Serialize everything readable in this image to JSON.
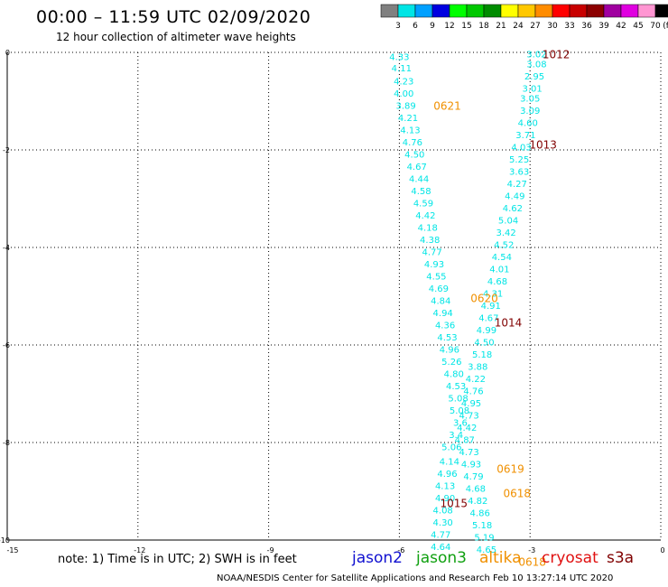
{
  "header": {
    "title": "00:00 – 11:59 UTC 02/09/2020",
    "subtitle": "12 hour collection of altimeter wave heights"
  },
  "colorbar": {
    "labels": [
      "3",
      "6",
      "9",
      "12",
      "15",
      "18",
      "21",
      "24",
      "27",
      "30",
      "33",
      "36",
      "39",
      "42",
      "45",
      "70"
    ],
    "unit": "(ft)",
    "colors": [
      "#808080",
      "#00e5e5",
      "#00a0ff",
      "#0000e0",
      "#00ff00",
      "#00c800",
      "#008c00",
      "#ffff00",
      "#ffc800",
      "#ff8c00",
      "#ff0000",
      "#c80000",
      "#8c0000",
      "#a000a0",
      "#e000e0",
      "#ff96d2",
      "#000000"
    ]
  },
  "footer": {
    "note": "note:  1) Time is in UTC;  2) SWH is in feet",
    "credit": "NOAA/NESDIS Center for Satellite Applications and Research    Feb 10 13:27:14 UTC 2020",
    "satellites": [
      {
        "name": "jason2",
        "color": "#1010d0"
      },
      {
        "name": "jason3",
        "color": "#10a010"
      },
      {
        "name": "altika",
        "color": "#f09000"
      },
      {
        "name": "cryosat",
        "color": "#e01010"
      },
      {
        "name": "s3a",
        "color": "#800000"
      }
    ]
  },
  "chart_data": {
    "type": "scatter",
    "title": "12 hour collection of altimeter wave heights",
    "xlim": [
      -15,
      0
    ],
    "ylim": [
      -10,
      0
    ],
    "xticks": [
      -15,
      -12,
      -9,
      -6,
      -3,
      0
    ],
    "yticks": [
      0,
      -2,
      -4,
      -6,
      -8,
      -10
    ],
    "grid": true,
    "track_color": "#00e5e5",
    "observations": [
      {
        "x": -6.0,
        "y": -0.1,
        "v": "4.33"
      },
      {
        "x": -5.95,
        "y": -0.33,
        "v": "4.11"
      },
      {
        "x": -5.9,
        "y": -0.6,
        "v": "4.23"
      },
      {
        "x": -5.9,
        "y": -0.85,
        "v": "4.00"
      },
      {
        "x": -5.85,
        "y": -1.1,
        "v": "3.89"
      },
      {
        "x": -5.8,
        "y": -1.35,
        "v": "4.21"
      },
      {
        "x": -5.75,
        "y": -1.6,
        "v": "4.13"
      },
      {
        "x": -5.7,
        "y": -1.85,
        "v": "4.76"
      },
      {
        "x": -5.65,
        "y": -2.1,
        "v": "4.50"
      },
      {
        "x": -5.6,
        "y": -2.35,
        "v": "4.67"
      },
      {
        "x": -5.55,
        "y": -2.6,
        "v": "4.44"
      },
      {
        "x": -5.5,
        "y": -2.85,
        "v": "4.58"
      },
      {
        "x": -5.45,
        "y": -3.1,
        "v": "4.59"
      },
      {
        "x": -5.4,
        "y": -3.35,
        "v": "4.42"
      },
      {
        "x": -5.35,
        "y": -3.6,
        "v": "4.18"
      },
      {
        "x": -5.3,
        "y": -3.85,
        "v": "4.38"
      },
      {
        "x": -5.25,
        "y": -4.1,
        "v": "4.77"
      },
      {
        "x": -5.2,
        "y": -4.35,
        "v": "4.93"
      },
      {
        "x": -5.15,
        "y": -4.6,
        "v": "4.55"
      },
      {
        "x": -5.1,
        "y": -4.85,
        "v": "4.69"
      },
      {
        "x": -5.05,
        "y": -5.1,
        "v": "4.84"
      },
      {
        "x": -5.0,
        "y": -5.35,
        "v": "4.94"
      },
      {
        "x": -4.95,
        "y": -5.6,
        "v": "4.36"
      },
      {
        "x": -4.9,
        "y": -5.85,
        "v": "4.53"
      },
      {
        "x": -4.85,
        "y": -6.1,
        "v": "4.96"
      },
      {
        "x": -4.8,
        "y": -6.35,
        "v": "5.26"
      },
      {
        "x": -4.75,
        "y": -6.6,
        "v": "4.80"
      },
      {
        "x": -4.7,
        "y": -6.85,
        "v": "4.53"
      },
      {
        "x": -4.65,
        "y": -7.1,
        "v": "5.08"
      },
      {
        "x": -4.62,
        "y": -7.35,
        "v": "5.08"
      },
      {
        "x": -4.6,
        "y": -7.6,
        "v": "3.6"
      },
      {
        "x": -4.7,
        "y": -7.85,
        "v": "3.4"
      },
      {
        "x": -4.8,
        "y": -8.1,
        "v": "5.06"
      },
      {
        "x": -4.85,
        "y": -8.4,
        "v": "4.14"
      },
      {
        "x": -4.9,
        "y": -8.65,
        "v": "4.96"
      },
      {
        "x": -4.95,
        "y": -8.9,
        "v": "4.13"
      },
      {
        "x": -4.95,
        "y": -9.15,
        "v": "4.90"
      },
      {
        "x": -5.0,
        "y": -9.4,
        "v": "4.08"
      },
      {
        "x": -5.0,
        "y": -9.65,
        "v": "4.30"
      },
      {
        "x": -5.05,
        "y": -9.9,
        "v": "4.77"
      },
      {
        "x": -5.05,
        "y": -10.15,
        "v": "4.64"
      },
      {
        "x": -2.85,
        "y": -0.05,
        "v": "3.02"
      },
      {
        "x": -2.85,
        "y": -0.25,
        "v": "3.08"
      },
      {
        "x": -2.9,
        "y": -0.5,
        "v": "2.95"
      },
      {
        "x": -2.95,
        "y": -0.75,
        "v": "3.01"
      },
      {
        "x": -3.0,
        "y": -0.95,
        "v": "3.05"
      },
      {
        "x": -3.0,
        "y": -1.2,
        "v": "3.09"
      },
      {
        "x": -3.05,
        "y": -1.45,
        "v": "4.60"
      },
      {
        "x": -3.1,
        "y": -1.7,
        "v": "3.71"
      },
      {
        "x": -3.2,
        "y": -1.95,
        "v": "4.03"
      },
      {
        "x": -3.25,
        "y": -2.2,
        "v": "5.25"
      },
      {
        "x": -3.25,
        "y": -2.45,
        "v": "3.63"
      },
      {
        "x": -3.3,
        "y": -2.7,
        "v": "4.27"
      },
      {
        "x": -3.35,
        "y": -2.95,
        "v": "4.49"
      },
      {
        "x": -3.4,
        "y": -3.2,
        "v": "4.62"
      },
      {
        "x": -3.5,
        "y": -3.45,
        "v": "5.04"
      },
      {
        "x": -3.55,
        "y": -3.7,
        "v": "3.42"
      },
      {
        "x": -3.6,
        "y": -3.95,
        "v": "4.52"
      },
      {
        "x": -3.65,
        "y": -4.2,
        "v": "4.54"
      },
      {
        "x": -3.7,
        "y": -4.45,
        "v": "4.01"
      },
      {
        "x": -3.75,
        "y": -4.7,
        "v": "4.68"
      },
      {
        "x": -3.85,
        "y": -4.95,
        "v": "4.31"
      },
      {
        "x": -3.9,
        "y": -5.2,
        "v": "4.91"
      },
      {
        "x": -3.95,
        "y": -5.45,
        "v": "4.67"
      },
      {
        "x": -4.0,
        "y": -5.7,
        "v": "4.99"
      },
      {
        "x": -4.05,
        "y": -5.95,
        "v": "4.50"
      },
      {
        "x": -4.1,
        "y": -6.2,
        "v": "5.18"
      },
      {
        "x": -4.2,
        "y": -6.45,
        "v": "3.88"
      },
      {
        "x": -4.25,
        "y": -6.7,
        "v": "4.22"
      },
      {
        "x": -4.3,
        "y": -6.95,
        "v": "4.76"
      },
      {
        "x": -4.35,
        "y": -7.2,
        "v": "4.95"
      },
      {
        "x": -4.4,
        "y": -7.45,
        "v": "4.73"
      },
      {
        "x": -4.45,
        "y": -7.7,
        "v": "4.42"
      },
      {
        "x": -4.5,
        "y": -7.95,
        "v": "4.87"
      },
      {
        "x": -4.4,
        "y": -8.2,
        "v": "4.73"
      },
      {
        "x": -4.35,
        "y": -8.45,
        "v": "4.93"
      },
      {
        "x": -4.3,
        "y": -8.7,
        "v": "4.79"
      },
      {
        "x": -4.25,
        "y": -8.95,
        "v": "4.68"
      },
      {
        "x": -4.2,
        "y": -9.2,
        "v": "4.82"
      },
      {
        "x": -4.15,
        "y": -9.45,
        "v": "4.86"
      },
      {
        "x": -4.1,
        "y": -9.7,
        "v": "5.18"
      },
      {
        "x": -4.05,
        "y": -9.95,
        "v": "5.19"
      },
      {
        "x": -4.0,
        "y": -10.2,
        "v": "4.65"
      }
    ],
    "time_labels": [
      {
        "x": -2.4,
        "y": -0.05,
        "t": "1012",
        "color": "#800000"
      },
      {
        "x": -2.7,
        "y": -1.9,
        "t": "1013",
        "color": "#800000"
      },
      {
        "x": -3.5,
        "y": -5.55,
        "t": "1014",
        "color": "#800000"
      },
      {
        "x": -4.75,
        "y": -9.25,
        "t": "1015",
        "color": "#800000"
      },
      {
        "x": -4.9,
        "y": -1.1,
        "t": "0621",
        "color": "#f09000"
      },
      {
        "x": -4.05,
        "y": -5.05,
        "t": "0620",
        "color": "#f09000"
      },
      {
        "x": -3.45,
        "y": -8.55,
        "t": "0619",
        "color": "#f09000"
      },
      {
        "x": -3.3,
        "y": -9.05,
        "t": "0618",
        "color": "#f09000"
      },
      {
        "x": -2.95,
        "y": -10.45,
        "t": "0618",
        "color": "#f09000"
      }
    ]
  }
}
